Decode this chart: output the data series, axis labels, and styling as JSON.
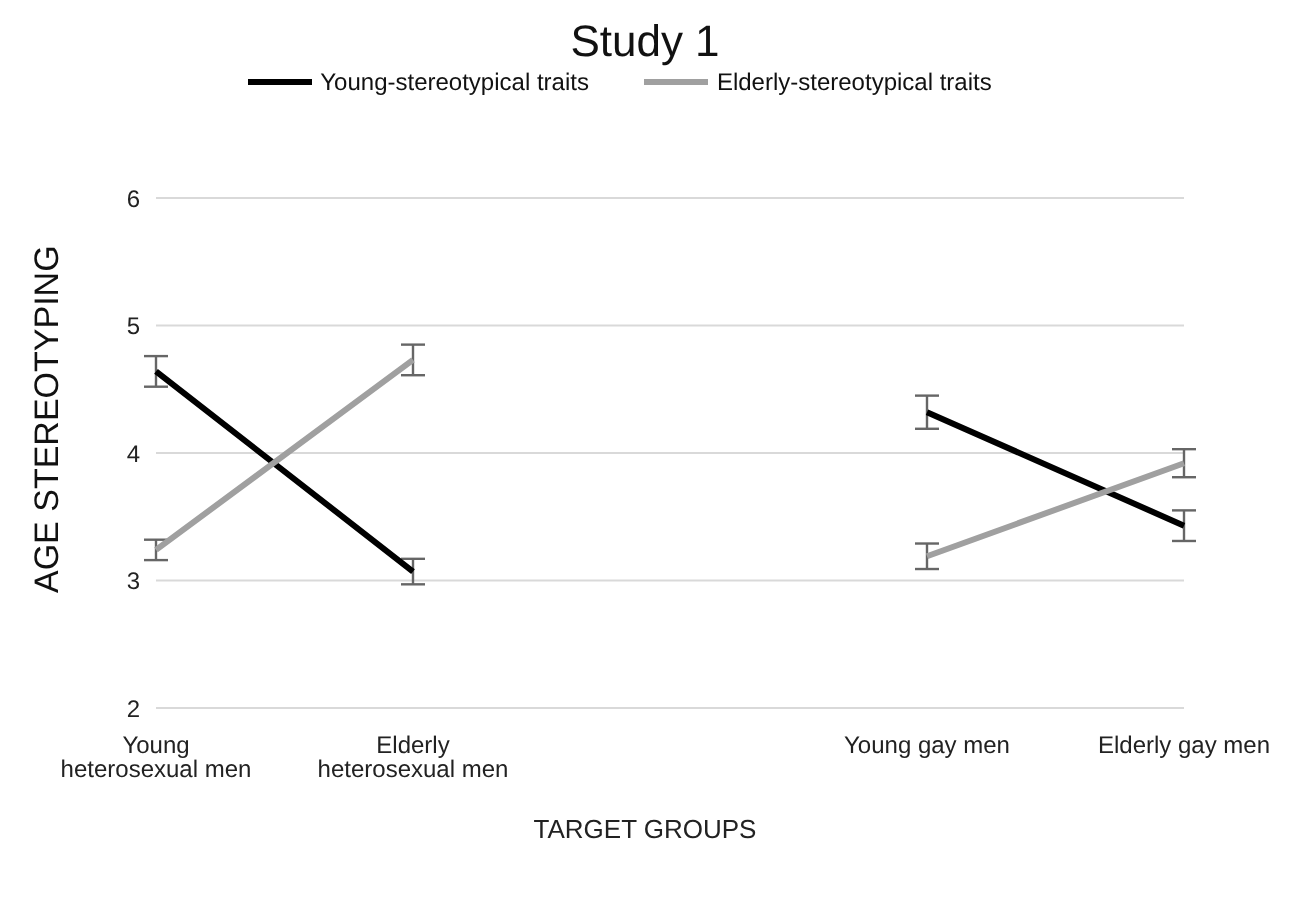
{
  "chart_data": {
    "type": "line",
    "title": "Study 1",
    "xlabel": "TARGET GROUPS",
    "ylabel": "AGE STEREOTYPING",
    "categories": [
      "Young heterosexual men",
      "Elderly heterosexual men",
      null,
      "Young gay men",
      "Elderly gay men"
    ],
    "series": [
      {
        "name": "Young-stereotypical traits",
        "color": "#000000",
        "values": [
          4.64,
          3.07,
          null,
          4.32,
          3.43
        ],
        "errors": [
          0.12,
          0.1,
          null,
          0.13,
          0.12
        ]
      },
      {
        "name": "Elderly-stereotypical traits",
        "color": "#a0a0a0",
        "values": [
          3.24,
          4.73,
          null,
          3.19,
          3.92
        ],
        "errors": [
          0.08,
          0.12,
          null,
          0.1,
          0.11
        ]
      }
    ],
    "ylim": [
      2,
      6
    ],
    "yticks": [
      2,
      3,
      4,
      5,
      6
    ],
    "grid": "y",
    "legend": "top",
    "marker": "none",
    "line_style": "solid"
  }
}
